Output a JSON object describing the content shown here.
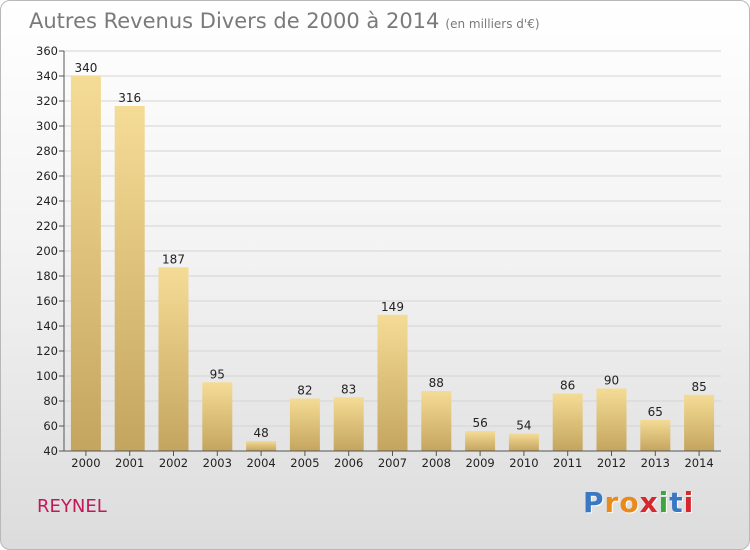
{
  "title": "Autres Revenus Divers de 2000 à 2014",
  "subtitle": "(en milliers d'€)",
  "location": "REYNEL",
  "logo": {
    "letters": [
      "P",
      "r",
      "o",
      "x",
      "i",
      "t",
      "i"
    ],
    "colors": [
      "#3b78c4",
      "#e98a1c",
      "#e98a1c",
      "#d8262d",
      "#3aa83f",
      "#3b78c4",
      "#d8262d"
    ]
  },
  "chart_data": {
    "type": "bar",
    "title": "Autres Revenus Divers de 2000 à 2014",
    "subtitle": "(en milliers d'€)",
    "categories": [
      "2000",
      "2001",
      "2002",
      "2003",
      "2004",
      "2005",
      "2006",
      "2007",
      "2008",
      "2009",
      "2010",
      "2011",
      "2012",
      "2013",
      "2014"
    ],
    "values": [
      340,
      316,
      187,
      95,
      48,
      82,
      83,
      149,
      88,
      56,
      54,
      86,
      90,
      65,
      85
    ],
    "ylim": [
      40,
      360
    ],
    "yticks": [
      40,
      60,
      80,
      100,
      120,
      140,
      160,
      180,
      200,
      220,
      240,
      260,
      280,
      300,
      320,
      340,
      360
    ],
    "grid": true,
    "legend": "none",
    "colors": {
      "bar_top": "#f5dc96",
      "bar_bottom": "#c4a55f"
    }
  }
}
